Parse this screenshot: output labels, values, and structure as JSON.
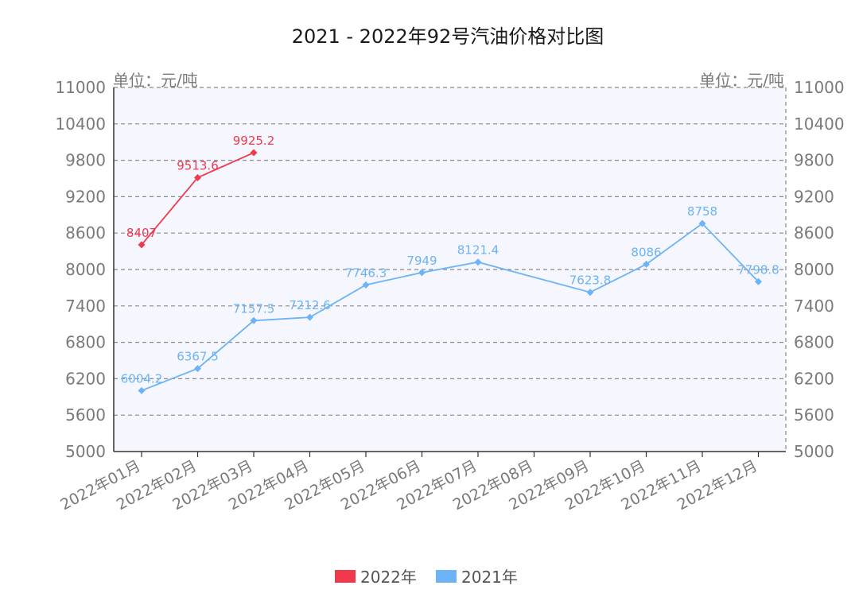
{
  "chart_data": {
    "type": "line",
    "title": "2021 - 2022年92号汽油价格对比图",
    "y_unit_left": "单位：元/吨",
    "y_unit_right": "单位：元/吨",
    "ylim": [
      5000,
      11000
    ],
    "yticks": [
      5000,
      5600,
      6200,
      6800,
      7400,
      8000,
      8600,
      9200,
      9800,
      10400,
      11000
    ],
    "grid": true,
    "legend_position": "bottom",
    "categories": [
      "2022年01月",
      "2022年02月",
      "2022年03月",
      "2022年04月",
      "2022年05月",
      "2022年06月",
      "2022年07月",
      "2022年08月",
      "2022年09月",
      "2022年10月",
      "2022年11月",
      "2022年12月"
    ],
    "series": [
      {
        "name": "2022年",
        "color": "#f0394d",
        "values": [
          8407,
          9513.6,
          9925.2,
          null,
          null,
          null,
          null,
          null,
          null,
          null,
          null,
          null
        ],
        "labels": [
          "8407",
          "9513.6",
          "9925.2"
        ]
      },
      {
        "name": "2021年",
        "color": "#6cb4f6",
        "values": [
          6004.2,
          6367.5,
          7157.5,
          7212.6,
          7746.3,
          7949,
          8121.4,
          null,
          7623.8,
          8086,
          8758,
          7798.8
        ],
        "labels": [
          "6004.2",
          "6367.5",
          "7157.5",
          "7212.6",
          "7746.3",
          "7949",
          "8121.4",
          "",
          "7623.8",
          "8086",
          "8758",
          "7798.8"
        ]
      }
    ]
  }
}
